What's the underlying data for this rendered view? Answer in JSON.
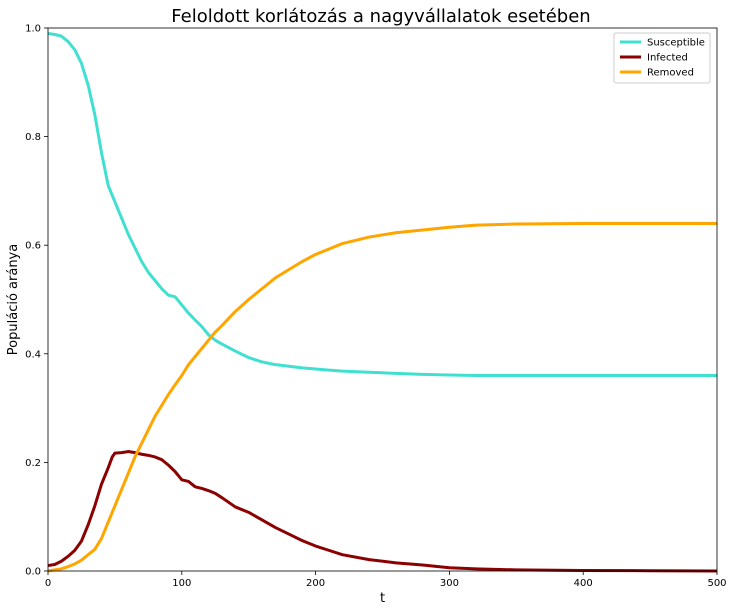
{
  "chart_data": {
    "type": "line",
    "title": "Feloldott korlátozás a nagyvállalatok esetében",
    "xlabel": "t",
    "ylabel": "Populáció aránya",
    "xlim": [
      0,
      500
    ],
    "ylim": [
      0,
      1.0
    ],
    "xticks": [
      0,
      100,
      200,
      300,
      400,
      500
    ],
    "xtick_labels": [
      "0",
      "100",
      "200",
      "300",
      "400",
      "500"
    ],
    "yticks": [
      0.0,
      0.2,
      0.4,
      0.6,
      0.8,
      1.0
    ],
    "ytick_labels": [
      "0.0",
      "0.2",
      "0.4",
      "0.6",
      "0.8",
      "1.0"
    ],
    "grid": false,
    "legend_position": "upper right",
    "series": [
      {
        "name": "Susceptible",
        "color": "#40E0D0",
        "x": [
          0,
          5,
          10,
          15,
          20,
          25,
          30,
          35,
          40,
          45,
          50,
          55,
          60,
          65,
          70,
          75,
          80,
          85,
          90,
          95,
          100,
          105,
          110,
          115,
          120,
          125,
          130,
          140,
          150,
          160,
          170,
          180,
          190,
          200,
          210,
          220,
          240,
          260,
          280,
          300,
          320,
          350,
          400,
          450,
          500
        ],
        "y": [
          0.99,
          0.988,
          0.985,
          0.975,
          0.96,
          0.935,
          0.895,
          0.84,
          0.77,
          0.71,
          0.68,
          0.65,
          0.62,
          0.595,
          0.57,
          0.55,
          0.535,
          0.52,
          0.508,
          0.505,
          0.49,
          0.475,
          0.462,
          0.45,
          0.435,
          0.425,
          0.418,
          0.405,
          0.393,
          0.385,
          0.38,
          0.377,
          0.374,
          0.372,
          0.37,
          0.368,
          0.366,
          0.364,
          0.362,
          0.361,
          0.36,
          0.36,
          0.36,
          0.36,
          0.36
        ]
      },
      {
        "name": "Infected",
        "color": "#8B0000",
        "x": [
          0,
          5,
          10,
          15,
          20,
          25,
          30,
          35,
          40,
          45,
          48,
          50,
          55,
          60,
          65,
          70,
          75,
          80,
          85,
          90,
          95,
          100,
          105,
          110,
          115,
          120,
          125,
          130,
          140,
          150,
          160,
          170,
          180,
          190,
          200,
          210,
          220,
          240,
          260,
          280,
          300,
          320,
          350,
          400,
          450,
          500
        ],
        "y": [
          0.01,
          0.012,
          0.018,
          0.027,
          0.038,
          0.055,
          0.085,
          0.12,
          0.16,
          0.19,
          0.21,
          0.217,
          0.218,
          0.22,
          0.218,
          0.215,
          0.213,
          0.21,
          0.205,
          0.195,
          0.183,
          0.168,
          0.165,
          0.155,
          0.152,
          0.148,
          0.143,
          0.135,
          0.118,
          0.108,
          0.094,
          0.08,
          0.068,
          0.056,
          0.046,
          0.038,
          0.03,
          0.021,
          0.015,
          0.011,
          0.006,
          0.004,
          0.002,
          0.001,
          0.0005,
          0.0
        ]
      },
      {
        "name": "Removed",
        "color": "#FFA500",
        "x": [
          0,
          5,
          10,
          15,
          20,
          25,
          30,
          35,
          40,
          45,
          50,
          55,
          60,
          65,
          70,
          75,
          80,
          85,
          90,
          95,
          100,
          105,
          110,
          115,
          120,
          125,
          130,
          140,
          150,
          160,
          170,
          180,
          190,
          200,
          210,
          220,
          240,
          260,
          280,
          300,
          320,
          350,
          400,
          450,
          500
        ],
        "y": [
          0.0,
          0.002,
          0.004,
          0.008,
          0.013,
          0.02,
          0.03,
          0.04,
          0.06,
          0.09,
          0.12,
          0.15,
          0.18,
          0.21,
          0.235,
          0.26,
          0.285,
          0.305,
          0.325,
          0.343,
          0.36,
          0.38,
          0.395,
          0.41,
          0.425,
          0.44,
          0.452,
          0.478,
          0.5,
          0.52,
          0.54,
          0.555,
          0.57,
          0.583,
          0.593,
          0.603,
          0.615,
          0.623,
          0.628,
          0.633,
          0.637,
          0.639,
          0.64,
          0.64,
          0.64
        ]
      }
    ]
  }
}
